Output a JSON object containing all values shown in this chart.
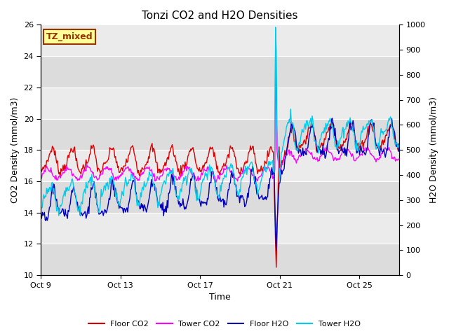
{
  "title": "Tonzi CO2 and H2O Densities",
  "xlabel": "Time",
  "ylabel_left": "CO2 Density (mmol/m3)",
  "ylabel_right": "H2O Density (mmol/m3)",
  "ylim_left": [
    10,
    26
  ],
  "ylim_right": [
    0,
    1000
  ],
  "yticks_left": [
    10,
    12,
    14,
    16,
    18,
    20,
    22,
    24,
    26
  ],
  "yticks_right": [
    0,
    100,
    200,
    300,
    400,
    500,
    600,
    700,
    800,
    900,
    1000
  ],
  "xtick_positions": [
    9,
    13,
    17,
    21,
    25
  ],
  "xtick_labels": [
    "Oct 9",
    "Oct 13",
    "Oct 17",
    "Oct 21",
    "Oct 25"
  ],
  "annotation_text": "TZ_mixed",
  "annotation_facecolor": "#FFFF99",
  "annotation_edgecolor": "#993300",
  "annotation_textcolor": "#993300",
  "colors": {
    "floor_co2": "#DD0000",
    "tower_co2": "#FF00FF",
    "floor_h2o": "#0000BB",
    "tower_h2o": "#00CCEE"
  },
  "legend_labels": [
    "Floor CO2",
    "Tower CO2",
    "Floor H2O",
    "Tower H2O"
  ],
  "background_color": "#ffffff",
  "plot_bg_light": "#EBEBEB",
  "plot_bg_dark": "#DCDCDC",
  "figsize": [
    6.4,
    4.8
  ],
  "dpi": 100,
  "n_points": 500,
  "start_day": 9.0,
  "end_day": 27.0,
  "spike_day": 20.83
}
